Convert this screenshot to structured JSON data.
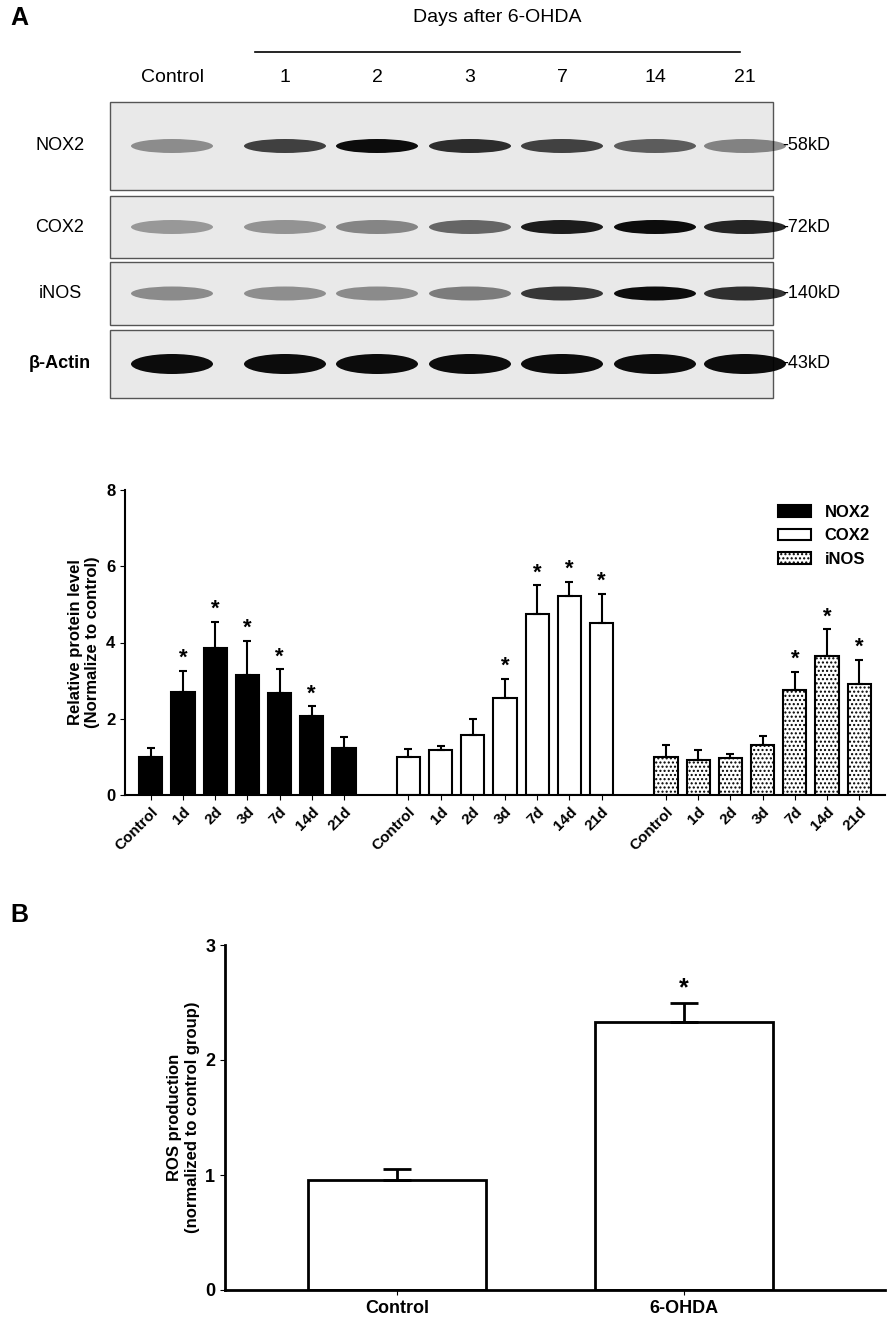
{
  "panel_labels": [
    "A",
    "B"
  ],
  "blot": {
    "header": "Days after 6-OHDA",
    "lanes": [
      "Control",
      "1",
      "2",
      "3",
      "7",
      "14",
      "21"
    ],
    "rows": [
      {
        "name": "NOX2",
        "size": "-58kD"
      },
      {
        "name": "COX2",
        "size": "-72kD"
      },
      {
        "name": "iNOS",
        "size": "-140kD"
      },
      {
        "name": "β-Actin",
        "size": "-43kD"
      }
    ]
  },
  "chart_data": [
    {
      "type": "bar",
      "y_label": "Relative protein level\n(Normalize to control)",
      "categories": [
        "Control",
        "1d",
        "2d",
        "3d",
        "7d",
        "14d",
        "21d"
      ],
      "series": [
        {
          "name": "NOX2",
          "color": "#000000",
          "values": [
            1.0,
            2.7,
            3.85,
            3.15,
            2.68,
            2.08,
            1.22
          ],
          "errors": [
            0.22,
            0.55,
            0.7,
            0.9,
            0.62,
            0.25,
            0.3
          ],
          "significant": [
            false,
            true,
            true,
            true,
            true,
            true,
            false
          ]
        },
        {
          "name": "COX2",
          "color": "#ffffff",
          "values": [
            1.0,
            1.18,
            1.58,
            2.55,
            4.75,
            5.22,
            4.5
          ],
          "errors": [
            0.2,
            0.1,
            0.42,
            0.5,
            0.75,
            0.38,
            0.78
          ],
          "significant": [
            false,
            false,
            false,
            true,
            true,
            true,
            true
          ]
        },
        {
          "name": "iNOS",
          "color": "#ffffff",
          "values": [
            1.0,
            0.92,
            0.97,
            1.3,
            2.75,
            3.65,
            2.92
          ],
          "errors": [
            0.3,
            0.25,
            0.1,
            0.25,
            0.48,
            0.7,
            0.62
          ],
          "significant": [
            false,
            false,
            false,
            false,
            true,
            true,
            true
          ]
        }
      ],
      "annotation": "*",
      "ylim": [
        0,
        8
      ],
      "yticks": [
        0,
        2,
        4,
        6,
        8
      ],
      "legend": "upper right"
    },
    {
      "type": "bar",
      "y_label": "ROS production\n(normalized to control group)",
      "categories": [
        "Control",
        "6-OHDA"
      ],
      "values": [
        0.96,
        2.33
      ],
      "errors": [
        0.09,
        0.17
      ],
      "significant": [
        false,
        true
      ],
      "annotation": "*",
      "color": "#ffffff",
      "ylim": [
        0,
        3
      ],
      "yticks": [
        0,
        1,
        2,
        3
      ]
    }
  ]
}
